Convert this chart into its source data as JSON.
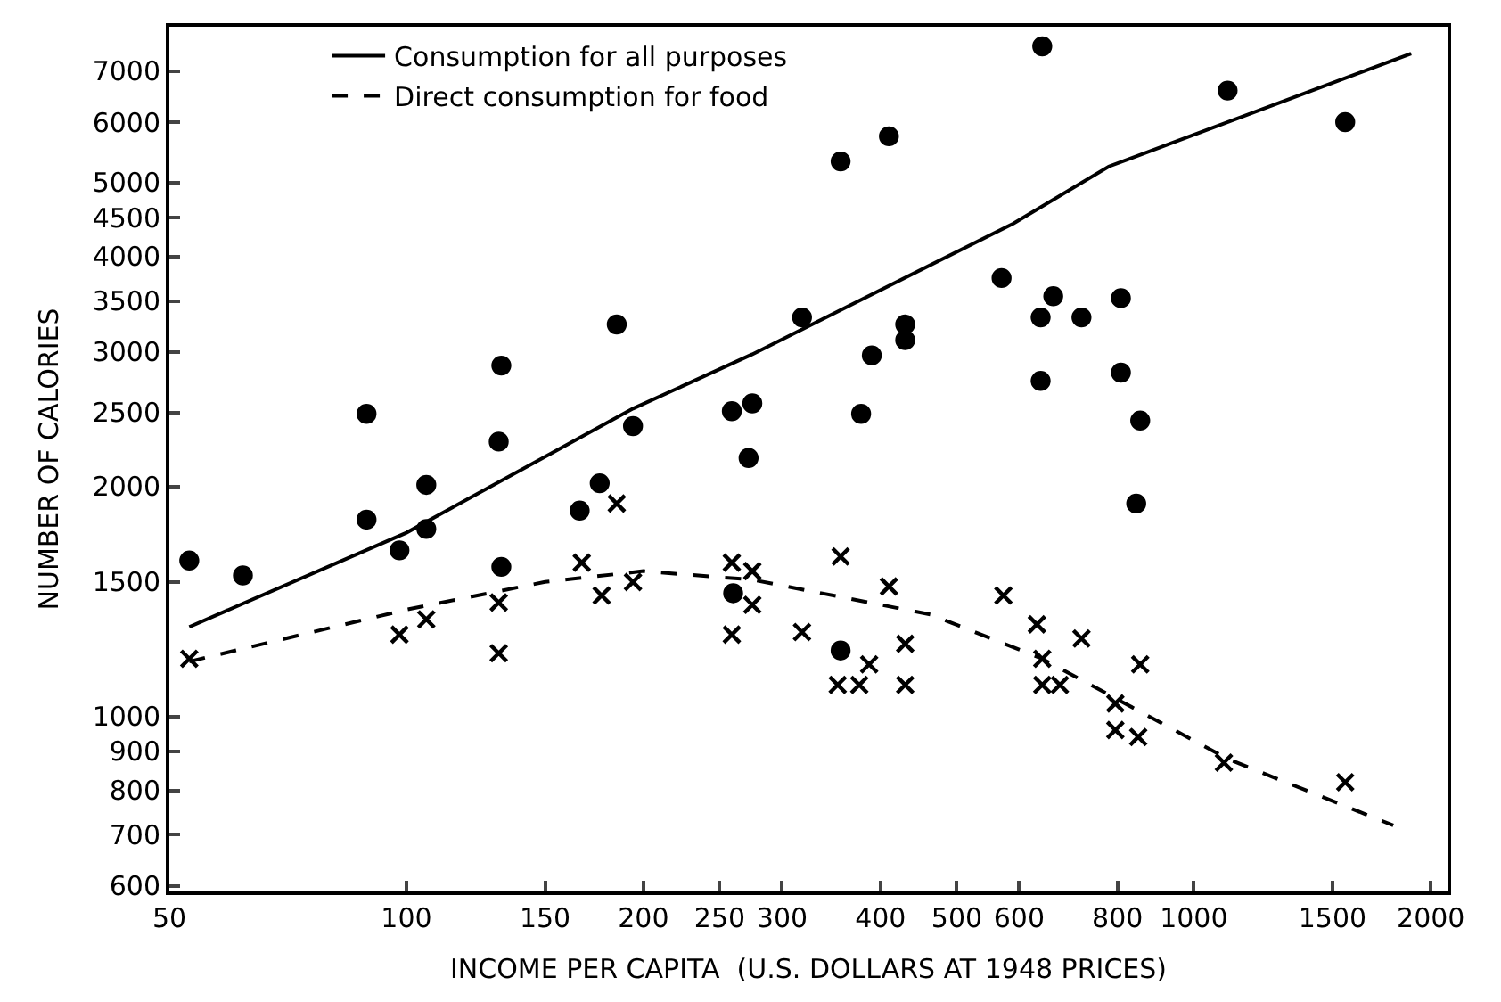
{
  "chart_data": {
    "type": "scatter",
    "xlabel": "INCOME PER CAPITA  (U.S. DOLLARS AT 1948 PRICES)",
    "ylabel": "NUMBER OF CALORIES",
    "log": "xy",
    "legend": "top left",
    "xlim": [
      50,
      2100
    ],
    "xticks": [
      50,
      100,
      150,
      200,
      250,
      300,
      400,
      500,
      600,
      800,
      1000,
      1500,
      2000
    ],
    "ylim": [
      590,
      8000
    ],
    "yticks": [
      600,
      700,
      800,
      900,
      1000,
      1500,
      2000,
      2500,
      3000,
      3500,
      4000,
      4500,
      5000,
      6000,
      7000
    ],
    "series": [
      {
        "marker": "circle",
        "color": "#000000",
        "x": [
          53,
          62,
          89,
          89,
          98,
          106,
          106,
          132,
          131,
          132,
          166,
          176,
          185,
          194,
          259,
          275,
          272,
          260,
          318,
          356,
          410,
          378,
          390,
          430,
          430,
          356,
          642,
          570,
          663,
          639,
          720,
          808,
          639,
          808,
          855,
          845,
          1104,
          1557
        ],
        "values": [
          1600,
          1530,
          2490,
          1810,
          1650,
          2010,
          1760,
          2880,
          2290,
          1570,
          1860,
          2020,
          3260,
          2400,
          2510,
          2570,
          2180,
          1450,
          3330,
          5330,
          5750,
          2490,
          2970,
          3260,
          3110,
          1220,
          7540,
          3750,
          3550,
          3330,
          3330,
          3530,
          2750,
          2820,
          2440,
          1900,
          6600,
          6000
        ]
      },
      {
        "marker": "cross",
        "color": "#000000",
        "x": [
          53,
          98,
          106,
          131,
          131,
          167,
          185,
          177,
          194,
          259,
          275,
          275,
          259,
          318,
          356,
          353,
          376,
          387,
          410,
          430,
          430,
          573,
          632,
          642,
          642,
          676,
          720,
          855,
          795,
          795,
          850,
          1092,
          1557
        ],
        "values": [
          1190,
          1280,
          1340,
          1410,
          1210,
          1590,
          1900,
          1440,
          1500,
          1590,
          1550,
          1400,
          1280,
          1290,
          1620,
          1100,
          1100,
          1170,
          1480,
          1245,
          1100,
          1440,
          1320,
          1190,
          1100,
          1100,
          1265,
          1170,
          1040,
          960,
          940,
          870,
          820
        ]
      },
      {
        "type": "line",
        "name": "Consumption for all purposes",
        "line_style": "solid",
        "color": "#000000",
        "x": [
          53,
          100,
          194,
          275,
          590,
          780,
          1888
        ],
        "values": [
          1310,
          1740,
          2530,
          2980,
          4420,
          5250,
          7380
        ]
      },
      {
        "type": "line",
        "name": "Direct consumption for food",
        "line_style": "dashed",
        "color": "#000000",
        "x": [
          53,
          100,
          150,
          200,
          275,
          463,
          642,
          1104,
          1792
        ],
        "values": [
          1180,
          1380,
          1500,
          1550,
          1510,
          1360,
          1190,
          880,
          720
        ]
      }
    ]
  }
}
